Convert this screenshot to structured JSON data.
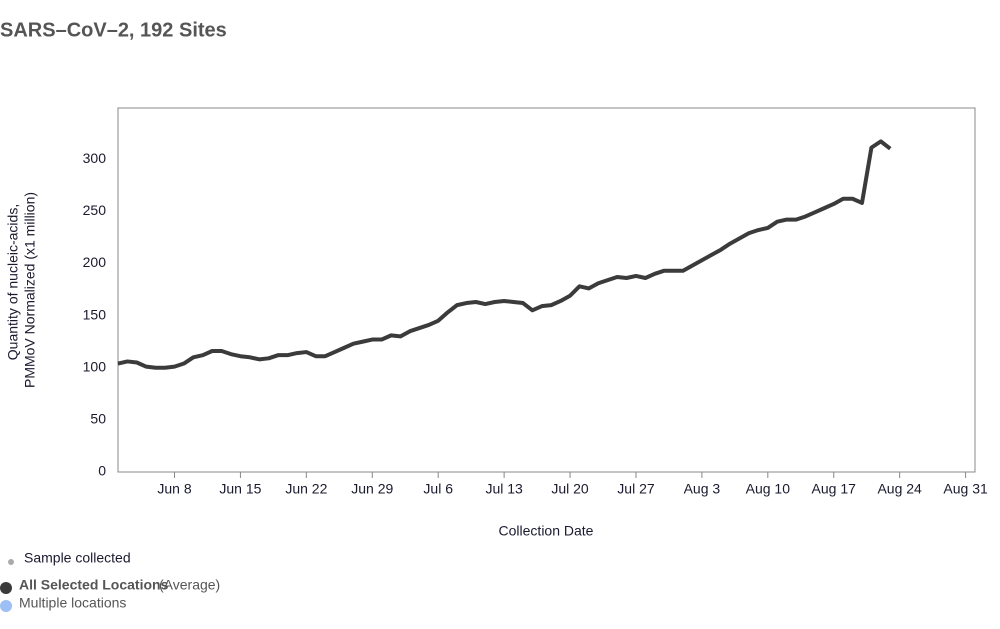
{
  "chart_data": {
    "type": "line",
    "title": "SARS–CoV–2, 192 Sites",
    "ylabel": [
      "Quantity of nucleic-acids,",
      "PMMoV Normalized (x1 million)"
    ],
    "xlabel": "Collection Date",
    "x": [
      "Jun 2",
      "Jun 3",
      "Jun 4",
      "Jun 5",
      "Jun 6",
      "Jun 7",
      "Jun 8",
      "Jun 9",
      "Jun 10",
      "Jun 11",
      "Jun 12",
      "Jun 13",
      "Jun 14",
      "Jun 15",
      "Jun 16",
      "Jun 17",
      "Jun 18",
      "Jun 19",
      "Jun 20",
      "Jun 21",
      "Jun 22",
      "Jun 23",
      "Jun 24",
      "Jun 25",
      "Jun 26",
      "Jun 27",
      "Jun 28",
      "Jun 29",
      "Jun 30",
      "Jul 1",
      "Jul 2",
      "Jul 3",
      "Jul 4",
      "Jul 5",
      "Jul 6",
      "Jul 7",
      "Jul 8",
      "Jul 9",
      "Jul 10",
      "Jul 11",
      "Jul 12",
      "Jul 13",
      "Jul 14",
      "Jul 15",
      "Jul 16",
      "Jul 17",
      "Jul 18",
      "Jul 19",
      "Jul 20",
      "Jul 21",
      "Jul 22",
      "Jul 23",
      "Jul 24",
      "Jul 25",
      "Jul 26",
      "Jul 27",
      "Jul 28",
      "Jul 29",
      "Jul 30",
      "Jul 31",
      "Aug 1",
      "Aug 2",
      "Aug 3",
      "Aug 4",
      "Aug 5",
      "Aug 6",
      "Aug 7",
      "Aug 8",
      "Aug 9",
      "Aug 10",
      "Aug 11",
      "Aug 12",
      "Aug 13",
      "Aug 14",
      "Aug 15",
      "Aug 16",
      "Aug 17",
      "Aug 18",
      "Aug 19",
      "Aug 20",
      "Aug 21",
      "Aug 22",
      "Aug 23"
    ],
    "series": [
      {
        "name": "All Selected Locations",
        "color": "#3b3b3b",
        "values": [
          104,
          106,
          105,
          101,
          100,
          100,
          101,
          104,
          110,
          112,
          116,
          116,
          113,
          111,
          110,
          108,
          109,
          112,
          112,
          114,
          115,
          111,
          111,
          115,
          119,
          123,
          125,
          127,
          127,
          131,
          130,
          135,
          138,
          141,
          145,
          153,
          160,
          162,
          163,
          161,
          163,
          164,
          163,
          162,
          155,
          159,
          160,
          164,
          169,
          178,
          176,
          181,
          184,
          187,
          186,
          188,
          186,
          190,
          193,
          193,
          193,
          198,
          203,
          208,
          213,
          219,
          224,
          229,
          232,
          234,
          240,
          242,
          242,
          245,
          249,
          253,
          257,
          262,
          262,
          258,
          311,
          317,
          310
        ]
      }
    ],
    "xlim": [
      "Jun 2",
      "Sep 1"
    ],
    "xticks": [
      "Jun 8",
      "Jun 15",
      "Jun 22",
      "Jun 29",
      "Jul 6",
      "Jul 13",
      "Jul 20",
      "Jul 27",
      "Aug 3",
      "Aug 10",
      "Aug 17",
      "Aug 24",
      "Aug 31"
    ],
    "ylim": [
      0,
      349
    ],
    "yticks": [
      0,
      50,
      100,
      150,
      200,
      250,
      300
    ],
    "legend": {
      "sample": "Sample collected",
      "average_name": "All Selected Locations",
      "average_note": "(Average)",
      "multiple": "Multiple locations",
      "sample_color": "#aaaaaa",
      "multiple_color": "#9dbff5"
    }
  }
}
